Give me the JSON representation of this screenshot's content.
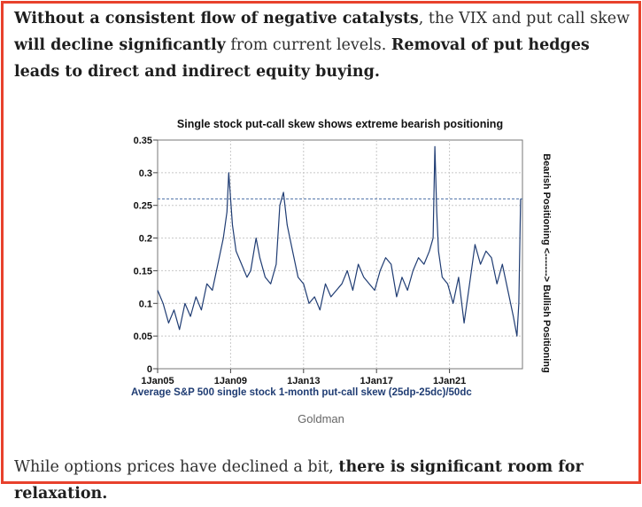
{
  "article": {
    "para1": [
      {
        "text": "Without a consistent flow of negative catalysts",
        "bold": true
      },
      {
        "text": ", the VIX and put call skew ",
        "bold": false
      },
      {
        "text": "will decline significantly",
        "bold": true
      },
      {
        "text": " from current levels. ",
        "bold": false
      },
      {
        "text": "Removal of put hedges leads to direct and indirect equity buying.",
        "bold": true
      }
    ],
    "caption": "Goldman",
    "para2": [
      {
        "text": "While options prices have declined a bit, ",
        "bold": false
      },
      {
        "text": "there is significant room for relaxation.",
        "bold": true
      }
    ]
  },
  "colors": {
    "frame": "#e8412c",
    "series": "#1f3c73",
    "axis_label": "#1f3c73",
    "threshold": "#4a6fa5",
    "grid": "#c8c8c8"
  },
  "chart_data": {
    "type": "line",
    "title": "Single stock put-call skew shows extreme bearish positioning",
    "xlabel": "Average S&P 500 single stock 1-month put-call skew (25dp-25dc)/50dc",
    "ylabel_right": "Bearish Positioning <-------> Bullish Positioning",
    "xlim": [
      2005.0,
      2025.0
    ],
    "ylim": [
      0,
      0.35
    ],
    "x_ticks": [
      {
        "value": 2005,
        "label": "1Jan05"
      },
      {
        "value": 2009,
        "label": "1Jan09"
      },
      {
        "value": 2013,
        "label": "1Jan13"
      },
      {
        "value": 2017,
        "label": "1Jan17"
      },
      {
        "value": 2021,
        "label": "1Jan21"
      }
    ],
    "y_ticks": [
      {
        "value": 0,
        "label": "0"
      },
      {
        "value": 0.05,
        "label": "0.05"
      },
      {
        "value": 0.1,
        "label": "0.1"
      },
      {
        "value": 0.15,
        "label": "0.15"
      },
      {
        "value": 0.2,
        "label": "0.2"
      },
      {
        "value": 0.25,
        "label": "0.25"
      },
      {
        "value": 0.3,
        "label": "0.3"
      },
      {
        "value": 0.35,
        "label": "0.35"
      }
    ],
    "grid": true,
    "threshold_line": 0.26,
    "series": [
      {
        "name": "put-call skew",
        "x": [
          2005.0,
          2005.3,
          2005.6,
          2005.9,
          2006.2,
          2006.5,
          2006.8,
          2007.1,
          2007.4,
          2007.7,
          2008.0,
          2008.3,
          2008.6,
          2008.8,
          2008.9,
          2009.0,
          2009.1,
          2009.3,
          2009.6,
          2009.9,
          2010.1,
          2010.4,
          2010.6,
          2010.9,
          2011.2,
          2011.5,
          2011.7,
          2011.9,
          2012.1,
          2012.4,
          2012.7,
          2013.0,
          2013.3,
          2013.6,
          2013.9,
          2014.2,
          2014.5,
          2014.8,
          2015.1,
          2015.4,
          2015.7,
          2016.0,
          2016.3,
          2016.6,
          2016.9,
          2017.2,
          2017.5,
          2017.8,
          2018.1,
          2018.4,
          2018.7,
          2019.0,
          2019.3,
          2019.6,
          2019.9,
          2020.1,
          2020.2,
          2020.3,
          2020.4,
          2020.6,
          2020.9,
          2021.2,
          2021.5,
          2021.8,
          2022.1,
          2022.4,
          2022.7,
          2023.0,
          2023.3,
          2023.6,
          2023.9,
          2024.2,
          2024.5,
          2024.7,
          2024.8,
          2024.9
        ],
        "values": [
          0.12,
          0.1,
          0.07,
          0.09,
          0.06,
          0.1,
          0.08,
          0.11,
          0.09,
          0.13,
          0.12,
          0.16,
          0.2,
          0.24,
          0.3,
          0.26,
          0.22,
          0.18,
          0.16,
          0.14,
          0.15,
          0.2,
          0.17,
          0.14,
          0.13,
          0.16,
          0.25,
          0.27,
          0.22,
          0.18,
          0.14,
          0.13,
          0.1,
          0.11,
          0.09,
          0.13,
          0.11,
          0.12,
          0.13,
          0.15,
          0.12,
          0.16,
          0.14,
          0.13,
          0.12,
          0.15,
          0.17,
          0.16,
          0.11,
          0.14,
          0.12,
          0.15,
          0.17,
          0.16,
          0.18,
          0.2,
          0.34,
          0.24,
          0.18,
          0.14,
          0.13,
          0.1,
          0.14,
          0.07,
          0.13,
          0.19,
          0.16,
          0.18,
          0.17,
          0.13,
          0.16,
          0.12,
          0.08,
          0.05,
          0.1,
          0.26
        ]
      }
    ]
  }
}
